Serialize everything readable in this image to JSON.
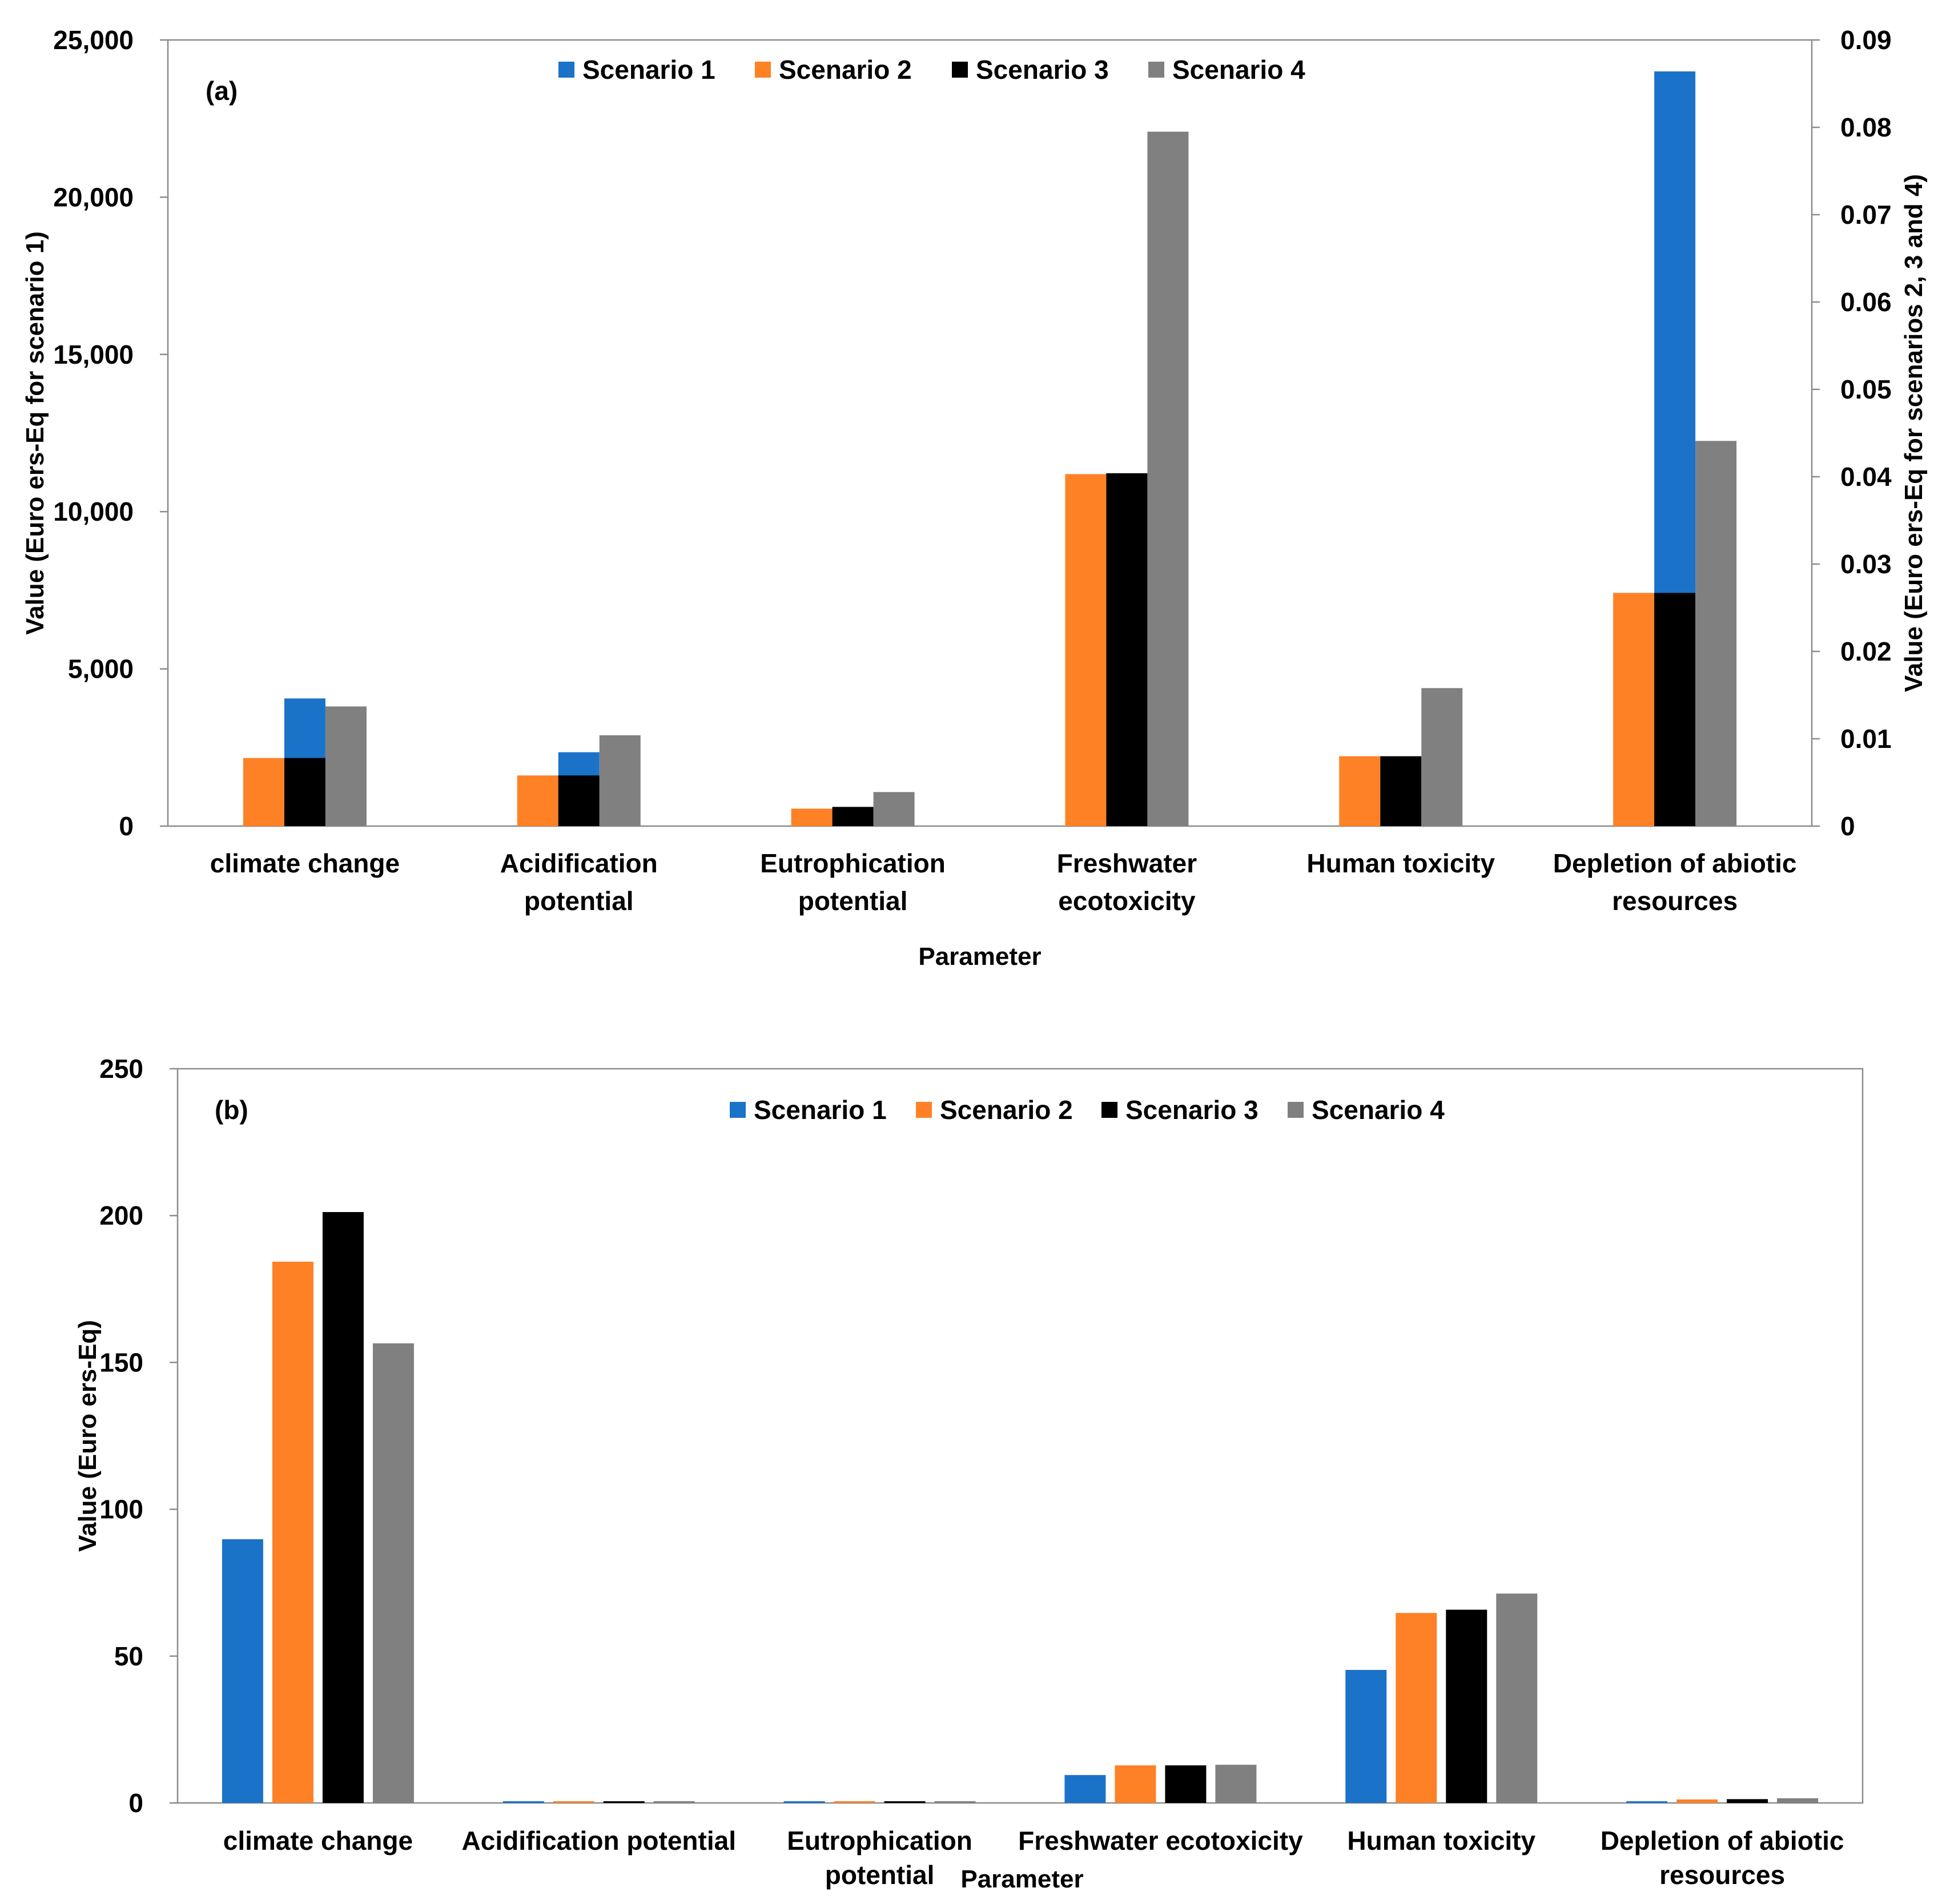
{
  "chart_data": [
    {
      "type": "bar",
      "panel_label": "(a)",
      "categories": [
        [
          "climate change"
        ],
        [
          "Acidification",
          "potential"
        ],
        [
          "Eutrophication",
          "potential"
        ],
        [
          "Freshwater",
          "ecotoxicity"
        ],
        [
          "Human toxicity"
        ],
        [
          "Depletion of abiotic",
          "resources"
        ]
      ],
      "series": [
        {
          "name": "Scenario 1",
          "axis": "left",
          "color": "#1b72c9",
          "values": [
            4060,
            2350,
            0,
            0,
            0,
            24000
          ]
        },
        {
          "name": "Scenario 2",
          "axis": "right",
          "color": "#ff8126",
          "values": [
            0.0078,
            0.0058,
            0.002,
            0.0403,
            0.008,
            0.0267
          ]
        },
        {
          "name": "Scenario 3",
          "axis": "right",
          "color": "#000000",
          "values": [
            0.0078,
            0.0058,
            0.0022,
            0.0404,
            0.008,
            0.0267
          ]
        },
        {
          "name": "Scenario 4",
          "axis": "right",
          "color": "#808080",
          "values": [
            0.0137,
            0.0104,
            0.0039,
            0.0795,
            0.0158,
            0.0441
          ]
        }
      ],
      "yaxis_left": {
        "min": 0,
        "max": 25000,
        "ticks": [
          "0",
          "5,000",
          "10,000",
          "15,000",
          "20,000",
          "25,000"
        ],
        "label": "Value (Euro ers-Eq for scenario 1)"
      },
      "yaxis_right": {
        "min": 0,
        "max": 0.09,
        "ticks": [
          "0",
          "0.01",
          "0.02",
          "0.03",
          "0.04",
          "0.05",
          "0.06",
          "0.07",
          "0.08",
          "0.09"
        ],
        "label": "Value (Euro ers-Eq for scenarios 2, 3 and 4)"
      },
      "xlabel": "Parameter",
      "grid": false,
      "legend": "top-center"
    },
    {
      "type": "bar",
      "panel_label": "(b)",
      "categories": [
        [
          "climate change"
        ],
        [
          "Acidification potential"
        ],
        [
          "Eutrophication",
          "potential"
        ],
        [
          "Freshwater ecotoxicity"
        ],
        [
          "Human toxicity"
        ],
        [
          "Depletion of abiotic",
          "resources"
        ]
      ],
      "series": [
        {
          "name": "Scenario 1",
          "color": "#1b72c9",
          "values": [
            89.8,
            0.3,
            0.05,
            9.5,
            45.3,
            0.5
          ]
        },
        {
          "name": "Scenario 2",
          "color": "#ff8126",
          "values": [
            184.3,
            0.5,
            0.1,
            12.8,
            64.7,
            1.2
          ]
        },
        {
          "name": "Scenario 3",
          "color": "#000000",
          "values": [
            201.2,
            0.5,
            0.3,
            12.8,
            65.8,
            1.3
          ]
        },
        {
          "name": "Scenario 4",
          "color": "#808080",
          "values": [
            156.5,
            0.6,
            0.3,
            13.0,
            71.3,
            1.6
          ]
        }
      ],
      "yaxis": {
        "min": 0,
        "max": 250,
        "ticks": [
          "0",
          "50",
          "100",
          "150",
          "200",
          "250"
        ],
        "label": "Value (Euro ers-Eq)"
      },
      "xlabel": "Parameter",
      "grid": false,
      "legend": "top-center"
    }
  ]
}
